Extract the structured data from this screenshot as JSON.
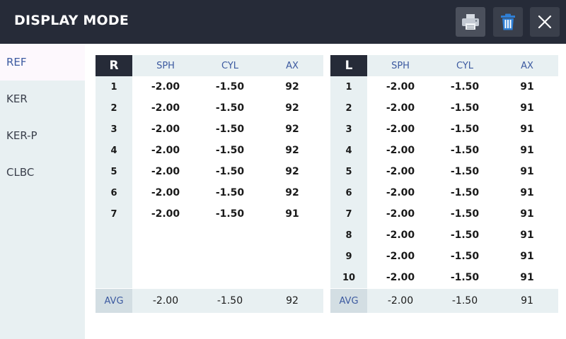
{
  "header": {
    "title": "DISPLAY MODE"
  },
  "sidebar": {
    "items": [
      {
        "label": "REF",
        "active": true
      },
      {
        "label": "KER",
        "active": false
      },
      {
        "label": "KER-P",
        "active": false
      },
      {
        "label": "CLBC",
        "active": false
      }
    ]
  },
  "columns": {
    "sph": "SPH",
    "cyl": "CYL",
    "ax": "AX"
  },
  "avg_label": "AVG",
  "right": {
    "eye": "R",
    "rows": [
      {
        "n": "1",
        "sph": "-2.00",
        "cyl": "-1.50",
        "ax": "92"
      },
      {
        "n": "2",
        "sph": "-2.00",
        "cyl": "-1.50",
        "ax": "92"
      },
      {
        "n": "3",
        "sph": "-2.00",
        "cyl": "-1.50",
        "ax": "92"
      },
      {
        "n": "4",
        "sph": "-2.00",
        "cyl": "-1.50",
        "ax": "92"
      },
      {
        "n": "5",
        "sph": "-2.00",
        "cyl": "-1.50",
        "ax": "92"
      },
      {
        "n": "6",
        "sph": "-2.00",
        "cyl": "-1.50",
        "ax": "92"
      },
      {
        "n": "7",
        "sph": "-2.00",
        "cyl": "-1.50",
        "ax": "91"
      }
    ],
    "avg": {
      "sph": "-2.00",
      "cyl": "-1.50",
      "ax": "92"
    }
  },
  "left": {
    "eye": "L",
    "rows": [
      {
        "n": "1",
        "sph": "-2.00",
        "cyl": "-1.50",
        "ax": "91"
      },
      {
        "n": "2",
        "sph": "-2.00",
        "cyl": "-1.50",
        "ax": "91"
      },
      {
        "n": "3",
        "sph": "-2.00",
        "cyl": "-1.50",
        "ax": "91"
      },
      {
        "n": "4",
        "sph": "-2.00",
        "cyl": "-1.50",
        "ax": "91"
      },
      {
        "n": "5",
        "sph": "-2.00",
        "cyl": "-1.50",
        "ax": "91"
      },
      {
        "n": "6",
        "sph": "-2.00",
        "cyl": "-1.50",
        "ax": "91"
      },
      {
        "n": "7",
        "sph": "-2.00",
        "cyl": "-1.50",
        "ax": "91"
      },
      {
        "n": "8",
        "sph": "-2.00",
        "cyl": "-1.50",
        "ax": "91"
      },
      {
        "n": "9",
        "sph": "-2.00",
        "cyl": "-1.50",
        "ax": "91"
      },
      {
        "n": "10",
        "sph": "-2.00",
        "cyl": "-1.50",
        "ax": "91"
      }
    ],
    "avg": {
      "sph": "-2.00",
      "cyl": "-1.50",
      "ax": "91"
    }
  },
  "icons": {
    "print": "printer-icon",
    "delete": "trash-icon",
    "close": "close-icon"
  }
}
